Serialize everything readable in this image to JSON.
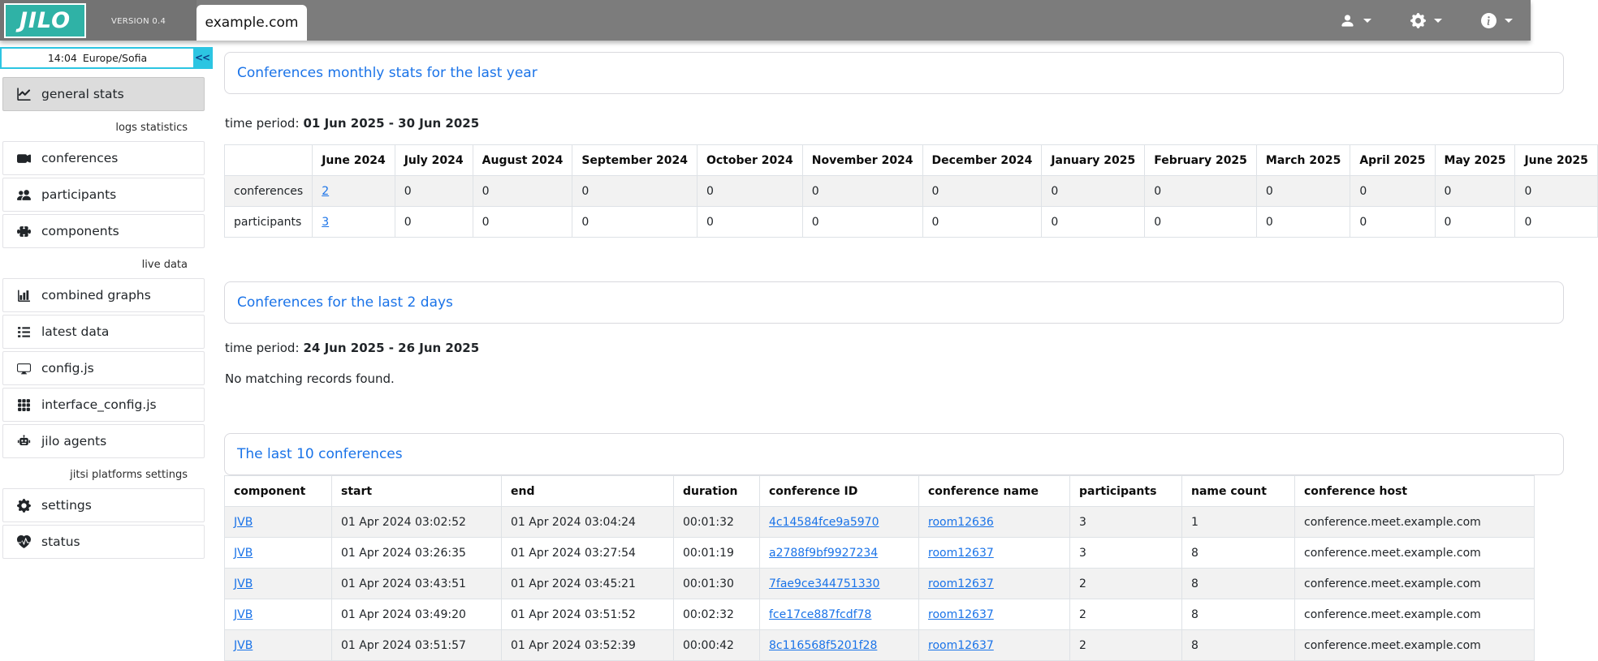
{
  "header": {
    "logo_text": "JILO",
    "version": "VERSION 0.4",
    "site_tab": "example.com",
    "menus": [
      {
        "icon": "user"
      },
      {
        "icon": "gear"
      },
      {
        "icon": "info"
      }
    ]
  },
  "sidebar": {
    "clock_time": "14:04",
    "clock_timezone": "Europe/Sofia",
    "collapse_label": "<<",
    "sections": [
      {
        "label": "",
        "items": [
          {
            "icon": "chart-line",
            "label": "general stats",
            "active": true
          }
        ]
      },
      {
        "label": "logs statistics",
        "items": [
          {
            "icon": "video-camera",
            "label": "conferences"
          },
          {
            "icon": "people",
            "label": "participants"
          },
          {
            "icon": "puzzle",
            "label": "components"
          }
        ]
      },
      {
        "label": "live data",
        "items": [
          {
            "icon": "bar-chart",
            "label": "combined graphs"
          },
          {
            "icon": "list",
            "label": "latest data"
          },
          {
            "icon": "display",
            "label": "config.js"
          },
          {
            "icon": "grid",
            "label": "interface_config.js"
          },
          {
            "icon": "robot",
            "label": "jilo agents"
          }
        ]
      },
      {
        "label": "jitsi platforms settings",
        "items": [
          {
            "icon": "gear",
            "label": "settings"
          },
          {
            "icon": "heart-pulse",
            "label": "status"
          }
        ]
      }
    ]
  },
  "main": {
    "monthly_stats": {
      "title": "Conferences monthly stats for the last year",
      "time_period_label": "time period:",
      "time_period_value": "01 Jun 2025 - 30 Jun 2025",
      "columns": [
        "",
        "June 2024",
        "July 2024",
        "August 2024",
        "September 2024",
        "October 2024",
        "November 2024",
        "December 2024",
        "January 2025",
        "February 2025",
        "March 2025",
        "April 2025",
        "May 2025",
        "June 2025"
      ],
      "rows": [
        {
          "label": "conferences",
          "values": [
            "2",
            "0",
            "0",
            "0",
            "0",
            "0",
            "0",
            "0",
            "0",
            "0",
            "0",
            "0",
            "0"
          ],
          "link_value_indexes": [
            0
          ]
        },
        {
          "label": "participants",
          "values": [
            "3",
            "0",
            "0",
            "0",
            "0",
            "0",
            "0",
            "0",
            "0",
            "0",
            "0",
            "0",
            "0"
          ],
          "link_value_indexes": [
            0
          ]
        }
      ]
    },
    "last_2_days": {
      "title": "Conferences for the last 2 days",
      "time_period_label": "time period:",
      "time_period_value": "24 Jun 2025 - 26 Jun 2025",
      "empty_message": "No matching records found."
    },
    "last_10": {
      "title": "The last 10 conferences",
      "columns": [
        "component",
        "start",
        "end",
        "duration",
        "conference ID",
        "conference name",
        "participants",
        "name count",
        "conference host"
      ],
      "link_column_indexes": [
        0,
        4,
        5
      ],
      "rows": [
        [
          "JVB",
          "01 Apr 2024 03:02:52",
          "01 Apr 2024 03:04:24",
          "00:01:32",
          "4c14584fce9a5970",
          "room12636",
          "3",
          "1",
          "conference.meet.example.com"
        ],
        [
          "JVB",
          "01 Apr 2024 03:26:35",
          "01 Apr 2024 03:27:54",
          "00:01:19",
          "a2788f9bf9927234",
          "room12637",
          "3",
          "8",
          "conference.meet.example.com"
        ],
        [
          "JVB",
          "01 Apr 2024 03:43:51",
          "01 Apr 2024 03:45:21",
          "00:01:30",
          "7fae9ce344751330",
          "room12637",
          "2",
          "8",
          "conference.meet.example.com"
        ],
        [
          "JVB",
          "01 Apr 2024 03:49:20",
          "01 Apr 2024 03:51:52",
          "00:02:32",
          "fce17ce887fcdf78",
          "room12637",
          "2",
          "8",
          "conference.meet.example.com"
        ],
        [
          "JVB",
          "01 Apr 2024 03:51:57",
          "01 Apr 2024 03:52:39",
          "00:00:42",
          "8c116568f5201f28",
          "room12637",
          "2",
          "8",
          "conference.meet.example.com"
        ]
      ]
    }
  },
  "colors": {
    "topbar_gray": "#7c7c7c",
    "logo_teal": "#2fb2a6",
    "accent_cyan": "#2cc5e2",
    "link_blue": "#1a73e8",
    "stripe_gray": "#f2f2f2"
  }
}
